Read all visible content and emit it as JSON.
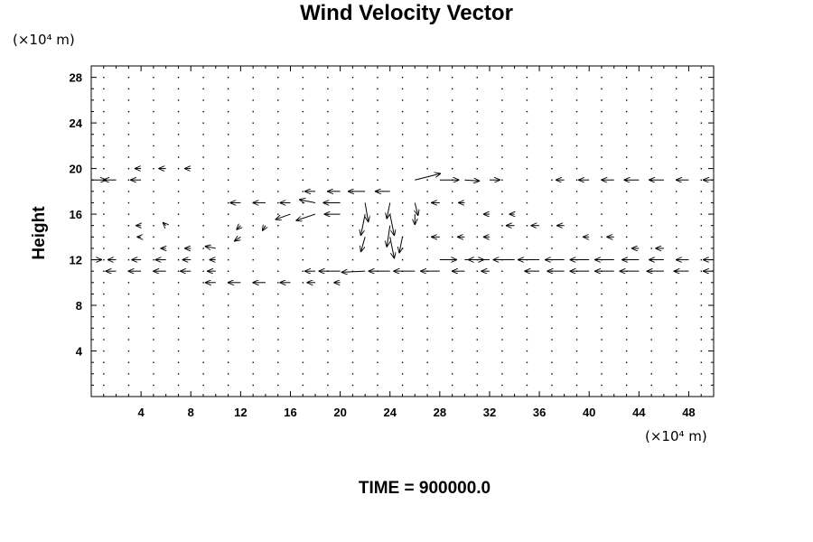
{
  "chart_data": {
    "type": "vector_field",
    "title": "Wind Velocity Vector",
    "ylabel": "Height",
    "y_unit_label": "(×10⁴ m)",
    "x_unit_label": "(×10⁴ m)",
    "footer": "TIME = 900000.0",
    "xlim": [
      0,
      50
    ],
    "ylim": [
      0,
      29
    ],
    "x_ticks": [
      4,
      8,
      12,
      16,
      20,
      24,
      28,
      32,
      36,
      40,
      44,
      48
    ],
    "y_ticks": [
      4,
      8,
      12,
      16,
      20,
      24,
      28
    ],
    "grid": false,
    "grid_spacing": {
      "x": 2,
      "y": 1
    },
    "vectors": [
      {
        "x": 0,
        "y": 19,
        "u": 1.4,
        "v": 0.0
      },
      {
        "x": 2,
        "y": 19,
        "u": -1.2,
        "v": 0.0
      },
      {
        "x": 4,
        "y": 19,
        "u": -1.0,
        "v": 0.0
      },
      {
        "x": 4,
        "y": 20,
        "u": -0.6,
        "v": 0.0
      },
      {
        "x": 6,
        "y": 20,
        "u": -0.7,
        "v": 0.0
      },
      {
        "x": 8,
        "y": 20,
        "u": -0.6,
        "v": 0.0
      },
      {
        "x": 22,
        "y": 18,
        "u": -1.6,
        "v": 0.0
      },
      {
        "x": 24,
        "y": 18,
        "u": -1.4,
        "v": 0.0
      },
      {
        "x": 20,
        "y": 18,
        "u": -1.2,
        "v": 0.0
      },
      {
        "x": 18,
        "y": 18,
        "u": -1.0,
        "v": 0.0
      },
      {
        "x": 26,
        "y": 19,
        "u": 2.4,
        "v": 0.6
      },
      {
        "x": 28,
        "y": 19,
        "u": 1.8,
        "v": 0.0
      },
      {
        "x": 30,
        "y": 19,
        "u": 1.4,
        "v": -0.1
      },
      {
        "x": 32,
        "y": 19,
        "u": 1.0,
        "v": 0.0
      },
      {
        "x": 38,
        "y": 19,
        "u": -0.8,
        "v": 0.0
      },
      {
        "x": 40,
        "y": 19,
        "u": -1.0,
        "v": 0.0
      },
      {
        "x": 42,
        "y": 19,
        "u": -1.2,
        "v": 0.0
      },
      {
        "x": 44,
        "y": 19,
        "u": -1.4,
        "v": 0.0
      },
      {
        "x": 46,
        "y": 19,
        "u": -1.4,
        "v": 0.0
      },
      {
        "x": 48,
        "y": 19,
        "u": -1.2,
        "v": 0.0
      },
      {
        "x": 50,
        "y": 19,
        "u": -1.0,
        "v": 0.0
      },
      {
        "x": 12,
        "y": 17,
        "u": -1.0,
        "v": 0.0
      },
      {
        "x": 14,
        "y": 17,
        "u": -1.2,
        "v": 0.0
      },
      {
        "x": 16,
        "y": 17,
        "u": -1.0,
        "v": 0.0
      },
      {
        "x": 18,
        "y": 17,
        "u": -1.5,
        "v": 0.3
      },
      {
        "x": 20,
        "y": 17,
        "u": -1.6,
        "v": 0.0
      },
      {
        "x": 16,
        "y": 16,
        "u": -1.4,
        "v": -0.5
      },
      {
        "x": 18,
        "y": 16,
        "u": -1.8,
        "v": -0.6
      },
      {
        "x": 20,
        "y": 16,
        "u": -1.5,
        "v": 0.0
      },
      {
        "x": 22,
        "y": 17,
        "u": 0.3,
        "v": -1.8
      },
      {
        "x": 22,
        "y": 16,
        "u": -0.4,
        "v": -2.0
      },
      {
        "x": 24,
        "y": 17,
        "u": -0.3,
        "v": -1.5
      },
      {
        "x": 24,
        "y": 16,
        "u": 0.4,
        "v": -2.0
      },
      {
        "x": 24,
        "y": 15,
        "u": -0.3,
        "v": -2.0
      },
      {
        "x": 24,
        "y": 14,
        "u": 0.4,
        "v": -2.0
      },
      {
        "x": 25,
        "y": 14,
        "u": -0.3,
        "v": -1.5
      },
      {
        "x": 22,
        "y": 14,
        "u": -0.4,
        "v": -1.4
      },
      {
        "x": 26,
        "y": 17,
        "u": 0.3,
        "v": -1.2
      },
      {
        "x": 26,
        "y": 16,
        "u": 0.0,
        "v": -1.0
      },
      {
        "x": 10,
        "y": 13,
        "u": -1.0,
        "v": 0.2
      },
      {
        "x": 12,
        "y": 14,
        "u": -0.6,
        "v": -0.4
      },
      {
        "x": 12,
        "y": 15,
        "u": -0.4,
        "v": -0.4
      },
      {
        "x": 14,
        "y": 15,
        "u": -0.3,
        "v": -0.5
      },
      {
        "x": 6,
        "y": 13,
        "u": -0.5,
        "v": 0.0
      },
      {
        "x": 8,
        "y": 13,
        "u": -0.6,
        "v": 0.0
      },
      {
        "x": 4,
        "y": 14,
        "u": -0.4,
        "v": 0.0
      },
      {
        "x": 4,
        "y": 15,
        "u": -0.5,
        "v": 0.0
      },
      {
        "x": 6,
        "y": 15,
        "u": -0.3,
        "v": 0.3
      },
      {
        "x": 0,
        "y": 12,
        "u": 1.0,
        "v": 0.0
      },
      {
        "x": 2,
        "y": 12,
        "u": -0.8,
        "v": 0.0
      },
      {
        "x": 4,
        "y": 12,
        "u": -0.9,
        "v": 0.0
      },
      {
        "x": 6,
        "y": 12,
        "u": -1.0,
        "v": 0.0
      },
      {
        "x": 8,
        "y": 12,
        "u": -0.8,
        "v": 0.0
      },
      {
        "x": 10,
        "y": 12,
        "u": -0.6,
        "v": 0.0
      },
      {
        "x": 2,
        "y": 11,
        "u": -1.0,
        "v": 0.0
      },
      {
        "x": 4,
        "y": 11,
        "u": -1.2,
        "v": 0.0
      },
      {
        "x": 6,
        "y": 11,
        "u": -1.2,
        "v": 0.0
      },
      {
        "x": 8,
        "y": 11,
        "u": -1.0,
        "v": 0.0
      },
      {
        "x": 10,
        "y": 11,
        "u": -0.8,
        "v": 0.0
      },
      {
        "x": 18,
        "y": 11,
        "u": -1.0,
        "v": 0.0
      },
      {
        "x": 20,
        "y": 11,
        "u": -2.0,
        "v": 0.0
      },
      {
        "x": 22,
        "y": 11,
        "u": -2.2,
        "v": -0.1
      },
      {
        "x": 24,
        "y": 11,
        "u": -2.0,
        "v": 0.0
      },
      {
        "x": 26,
        "y": 11,
        "u": -2.0,
        "v": 0.0
      },
      {
        "x": 28,
        "y": 11,
        "u": -1.8,
        "v": 0.0
      },
      {
        "x": 30,
        "y": 11,
        "u": -1.2,
        "v": 0.0
      },
      {
        "x": 32,
        "y": 11,
        "u": -0.8,
        "v": 0.0
      },
      {
        "x": 28,
        "y": 12,
        "u": 1.6,
        "v": 0.0
      },
      {
        "x": 30,
        "y": 12,
        "u": 1.8,
        "v": 0.0
      },
      {
        "x": 32,
        "y": 12,
        "u": -2.0,
        "v": 0.0
      },
      {
        "x": 34,
        "y": 12,
        "u": -2.0,
        "v": 0.0
      },
      {
        "x": 36,
        "y": 12,
        "u": -2.0,
        "v": 0.0
      },
      {
        "x": 38,
        "y": 12,
        "u": -1.8,
        "v": 0.0
      },
      {
        "x": 40,
        "y": 12,
        "u": -1.8,
        "v": 0.0
      },
      {
        "x": 42,
        "y": 12,
        "u": -1.8,
        "v": 0.0
      },
      {
        "x": 44,
        "y": 12,
        "u": -1.6,
        "v": 0.0
      },
      {
        "x": 46,
        "y": 12,
        "u": -1.4,
        "v": 0.0
      },
      {
        "x": 48,
        "y": 12,
        "u": -1.2,
        "v": 0.0
      },
      {
        "x": 50,
        "y": 12,
        "u": -1.0,
        "v": 0.0
      },
      {
        "x": 36,
        "y": 11,
        "u": -1.4,
        "v": 0.0
      },
      {
        "x": 38,
        "y": 11,
        "u": -1.6,
        "v": 0.0
      },
      {
        "x": 40,
        "y": 11,
        "u": -1.8,
        "v": 0.0
      },
      {
        "x": 42,
        "y": 11,
        "u": -1.8,
        "v": 0.0
      },
      {
        "x": 44,
        "y": 11,
        "u": -1.8,
        "v": 0.0
      },
      {
        "x": 46,
        "y": 11,
        "u": -1.6,
        "v": 0.0
      },
      {
        "x": 48,
        "y": 11,
        "u": -1.4,
        "v": 0.0
      },
      {
        "x": 50,
        "y": 11,
        "u": -1.0,
        "v": 0.0
      },
      {
        "x": 10,
        "y": 10,
        "u": -1.0,
        "v": 0.0
      },
      {
        "x": 12,
        "y": 10,
        "u": -1.2,
        "v": 0.0
      },
      {
        "x": 14,
        "y": 10,
        "u": -1.2,
        "v": 0.0
      },
      {
        "x": 16,
        "y": 10,
        "u": -1.0,
        "v": 0.0
      },
      {
        "x": 18,
        "y": 10,
        "u": -0.8,
        "v": 0.0
      },
      {
        "x": 20,
        "y": 10,
        "u": -0.6,
        "v": 0.0
      },
      {
        "x": 34,
        "y": 15,
        "u": -0.8,
        "v": 0.0
      },
      {
        "x": 36,
        "y": 15,
        "u": -0.8,
        "v": 0.0
      },
      {
        "x": 38,
        "y": 15,
        "u": -0.7,
        "v": 0.0
      },
      {
        "x": 40,
        "y": 14,
        "u": -0.6,
        "v": 0.0
      },
      {
        "x": 42,
        "y": 14,
        "u": -0.7,
        "v": 0.0
      },
      {
        "x": 44,
        "y": 13,
        "u": -0.7,
        "v": 0.0
      },
      {
        "x": 46,
        "y": 13,
        "u": -0.8,
        "v": 0.0
      },
      {
        "x": 28,
        "y": 14,
        "u": -0.8,
        "v": 0.0
      },
      {
        "x": 30,
        "y": 14,
        "u": -0.7,
        "v": 0.0
      },
      {
        "x": 32,
        "y": 14,
        "u": -0.6,
        "v": 0.0
      },
      {
        "x": 28,
        "y": 17,
        "u": -0.8,
        "v": 0.0
      },
      {
        "x": 30,
        "y": 17,
        "u": -0.6,
        "v": 0.0
      },
      {
        "x": 32,
        "y": 16,
        "u": -0.6,
        "v": 0.0
      },
      {
        "x": 34,
        "y": 16,
        "u": -0.5,
        "v": 0.0
      }
    ]
  }
}
